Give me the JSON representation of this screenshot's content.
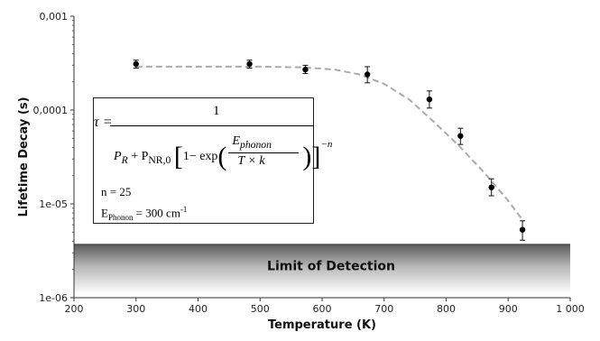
{
  "chart_data": {
    "type": "scatter",
    "xlabel": "Temperature (K)",
    "ylabel": "Lifetime Decay (s)",
    "xlim": [
      200,
      1000
    ],
    "ylim": [
      1e-06,
      0.001
    ],
    "y_scale": "log",
    "x_ticks": [
      "200",
      "300",
      "400",
      "500",
      "600",
      "700",
      "800",
      "900",
      "1 000"
    ],
    "x_tick_values": [
      200,
      300,
      400,
      500,
      600,
      700,
      800,
      900,
      1000
    ],
    "y_ticks": [
      "1e-06",
      "1e-05",
      "0,0001",
      "0,001"
    ],
    "y_tick_values": [
      1e-06,
      1e-05,
      0.0001,
      0.001
    ],
    "series": [
      {
        "marker": "circle",
        "color": "#000000",
        "x": [
          300,
          483,
          573,
          673,
          773,
          823,
          873,
          923
        ],
        "y": [
          0.00031,
          0.00031,
          0.00027,
          0.00024,
          0.00013,
          5.3e-05,
          1.5e-05,
          5.3e-06
        ],
        "err_low": [
          0.00028,
          0.00028,
          0.000245,
          0.000195,
          0.000105,
          4.3e-05,
          1.22e-05,
          4.1e-06
        ],
        "err_high": [
          0.00034,
          0.00034,
          0.0003,
          0.00029,
          0.00016,
          6.4e-05,
          1.85e-05,
          6.6e-06
        ]
      }
    ],
    "fit_curve": {
      "style": "dashed",
      "color": "#aaaaaa",
      "x": [
        300,
        400,
        500,
        570,
        620,
        660,
        700,
        740,
        780,
        820,
        860,
        900,
        925
      ],
      "y": [
        0.00029,
        0.00029,
        0.00029,
        0.000285,
        0.00027,
        0.00024,
        0.00019,
        0.00013,
        7.5e-05,
        4.2e-05,
        2.2e-05,
        1.08e-05,
        6.5e-06
      ]
    },
    "grid": false,
    "limit_of_detection": {
      "label": "Limit of Detection",
      "y_top": 3.7e-06,
      "y_bottom": 1.1e-06,
      "x_range": [
        200,
        1000
      ]
    },
    "equation_box": {
      "tau": "τ =",
      "numerator": "1",
      "denominator_left": "P",
      "sub_R": "R",
      "plus": " + P",
      "sub_NR": "NR,0",
      "bracket_left": "[",
      "one_minus_exp": "1− exp",
      "paren_left": "(",
      "e_phonon_num": "E",
      "e_phonon_sub": "phonon",
      "t_times_k": "T × k",
      "paren_right": ")",
      "bracket_right": "]",
      "exponent": "−n",
      "n_line": "n = 25",
      "ephonon_label": "E",
      "ephonon_sub": "Phonon",
      "ephonon_value": " = 300 cm",
      "ephonon_sup": "-1"
    }
  }
}
